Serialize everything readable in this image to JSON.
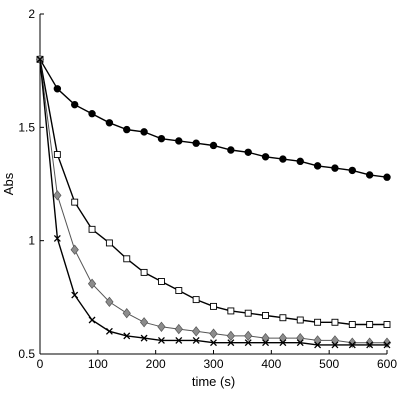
{
  "chart_data": {
    "type": "line",
    "title": "",
    "xlabel": "time (s)",
    "ylabel": "Abs",
    "xlim": [
      0,
      600
    ],
    "ylim": [
      0.5,
      2
    ],
    "x_ticks": [
      0,
      100,
      200,
      300,
      400,
      500,
      600
    ],
    "y_ticks": [
      0.5,
      1,
      1.5,
      2
    ],
    "y_tick_labels": [
      "0.5",
      "1",
      "1.5",
      "2"
    ],
    "grid": false,
    "legend": false,
    "x": [
      0,
      30,
      60,
      90,
      120,
      150,
      180,
      210,
      240,
      270,
      300,
      330,
      360,
      390,
      420,
      450,
      480,
      510,
      540,
      570,
      600
    ],
    "series": [
      {
        "marker": "circle-filled",
        "line_color": "#000000",
        "marker_fill": "#000000",
        "values": [
          1.8,
          1.67,
          1.6,
          1.56,
          1.52,
          1.49,
          1.48,
          1.45,
          1.44,
          1.43,
          1.42,
          1.4,
          1.39,
          1.37,
          1.36,
          1.35,
          1.33,
          1.32,
          1.31,
          1.29,
          1.28
        ]
      },
      {
        "marker": "square-open",
        "line_color": "#000000",
        "marker_fill": "#ffffff",
        "values": [
          1.8,
          1.38,
          1.17,
          1.05,
          0.99,
          0.92,
          0.86,
          0.82,
          0.78,
          0.74,
          0.71,
          0.69,
          0.68,
          0.67,
          0.66,
          0.65,
          0.64,
          0.64,
          0.63,
          0.63,
          0.63
        ]
      },
      {
        "marker": "diamond-gray",
        "line_color": "#555555",
        "marker_fill": "#8c8c8c",
        "values": [
          1.8,
          1.2,
          0.96,
          0.81,
          0.73,
          0.68,
          0.64,
          0.62,
          0.61,
          0.6,
          0.59,
          0.58,
          0.58,
          0.57,
          0.57,
          0.57,
          0.56,
          0.56,
          0.55,
          0.55,
          0.55
        ]
      },
      {
        "marker": "cross",
        "line_color": "#000000",
        "marker_fill": "#000000",
        "values": [
          1.8,
          1.01,
          0.76,
          0.65,
          0.6,
          0.58,
          0.57,
          0.56,
          0.56,
          0.56,
          0.55,
          0.55,
          0.55,
          0.55,
          0.55,
          0.55,
          0.54,
          0.54,
          0.54,
          0.54,
          0.54
        ]
      }
    ]
  }
}
